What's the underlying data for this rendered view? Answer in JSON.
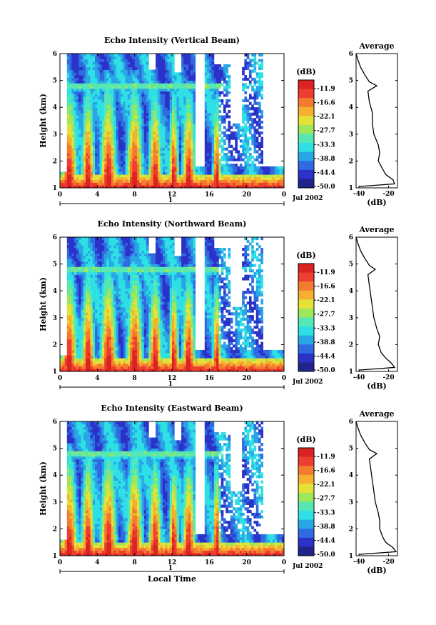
{
  "chart_data": [
    {
      "type": "heatmap",
      "title": "Echo Intensity (Vertical Beam)",
      "ylabel": "Height (km)",
      "xticks": [
        "0",
        "4",
        "8",
        "12",
        "16",
        "20",
        "0"
      ],
      "yticks": [
        "1",
        "2",
        "3",
        "4",
        "5",
        "6"
      ],
      "xlim": [
        0,
        24
      ],
      "ylim": [
        1,
        6
      ],
      "day_marker": "1",
      "date_label": "Jul 2002",
      "colorbar_unit": "(dB)",
      "colorbar_labels": [
        "-11.9",
        "-16.6",
        "-22.1",
        "-27.7",
        "-33.3",
        "-38.8",
        "-44.4",
        "-50.0"
      ],
      "average": {
        "title": "Average",
        "xlabel": "(dB)",
        "xticks": [
          "-40",
          "-20"
        ],
        "yticks": [
          "1",
          "2",
          "3",
          "4",
          "5",
          "6"
        ],
        "xlim": [
          -42,
          -14
        ],
        "height": [
          1.05,
          1.15,
          1.3,
          1.5,
          1.7,
          2.0,
          2.3,
          2.6,
          3.0,
          3.4,
          3.8,
          4.2,
          4.6,
          4.8,
          4.95,
          5.2,
          5.5,
          5.8,
          6.0
        ],
        "value": [
          -40,
          -16,
          -17,
          -22,
          -24,
          -27,
          -26,
          -27,
          -30,
          -31,
          -31,
          -33,
          -34,
          -28,
          -33,
          -36,
          -39,
          -41,
          -42
        ]
      }
    },
    {
      "type": "heatmap",
      "title": "Echo Intensity (Northward Beam)",
      "ylabel": "Height (km)",
      "xticks": [
        "0",
        "4",
        "8",
        "12",
        "16",
        "20",
        "0"
      ],
      "yticks": [
        "1",
        "2",
        "3",
        "4",
        "5",
        "6"
      ],
      "xlim": [
        0,
        24
      ],
      "ylim": [
        1,
        6
      ],
      "day_marker": "1",
      "date_label": "Jul 2002",
      "colorbar_unit": "(dB)",
      "colorbar_labels": [
        "-11.9",
        "-16.6",
        "-22.1",
        "-27.7",
        "-33.3",
        "-38.8",
        "-44.4",
        "-50.0"
      ],
      "average": {
        "title": "Average",
        "xlabel": "(dB)",
        "xticks": [
          "-40",
          "-20"
        ],
        "yticks": [
          "1",
          "2",
          "3",
          "4",
          "5",
          "6"
        ],
        "xlim": [
          -42,
          -14
        ],
        "height": [
          1.05,
          1.15,
          1.3,
          1.5,
          1.7,
          2.0,
          2.3,
          2.6,
          3.0,
          3.4,
          3.8,
          4.2,
          4.6,
          4.8,
          4.95,
          5.2,
          5.5,
          5.8,
          6.0
        ],
        "value": [
          -40,
          -16,
          -18,
          -22,
          -25,
          -27,
          -26,
          -28,
          -30,
          -31,
          -32,
          -33,
          -34,
          -29,
          -33,
          -36,
          -39,
          -41,
          -42
        ]
      }
    },
    {
      "type": "heatmap",
      "title": "Echo Intensity (Eastward Beam)",
      "ylabel": "Height (km)",
      "xlabel": "Local Time",
      "xticks": [
        "0",
        "4",
        "8",
        "12",
        "16",
        "20",
        "0"
      ],
      "yticks": [
        "1",
        "2",
        "3",
        "4",
        "5",
        "6"
      ],
      "xlim": [
        0,
        24
      ],
      "ylim": [
        1,
        6
      ],
      "day_marker": "1",
      "date_label": "Jul 2002",
      "colorbar_unit": "(dB)",
      "colorbar_labels": [
        "-11.9",
        "-16.6",
        "-22.1",
        "-27.7",
        "-33.3",
        "-38.8",
        "-44.4",
        "-50.0"
      ],
      "average": {
        "title": "Average",
        "xlabel": "(dB)",
        "xticks": [
          "-40",
          "-20"
        ],
        "yticks": [
          "1",
          "2",
          "3",
          "4",
          "5",
          "6"
        ],
        "xlim": [
          -42,
          -14
        ],
        "height": [
          1.05,
          1.15,
          1.3,
          1.5,
          1.7,
          2.0,
          2.3,
          2.6,
          3.0,
          3.4,
          3.8,
          4.2,
          4.6,
          4.8,
          4.95,
          5.2,
          5.5,
          5.8,
          6.0
        ],
        "value": [
          -40,
          -15,
          -17,
          -22,
          -24,
          -26,
          -26,
          -27,
          -29,
          -30,
          -31,
          -32,
          -33,
          -28,
          -33,
          -36,
          -39,
          -41,
          -42
        ]
      }
    }
  ],
  "colors": {
    "scale": [
      "#23238c",
      "#2a32c8",
      "#2f6ae0",
      "#2aa6e6",
      "#2ee0e6",
      "#56e8b4",
      "#9ee65a",
      "#e4e23a",
      "#f6b030",
      "#f47a2e",
      "#ee3e30",
      "#dc2323"
    ],
    "surface_band": "#2ee0e6"
  }
}
